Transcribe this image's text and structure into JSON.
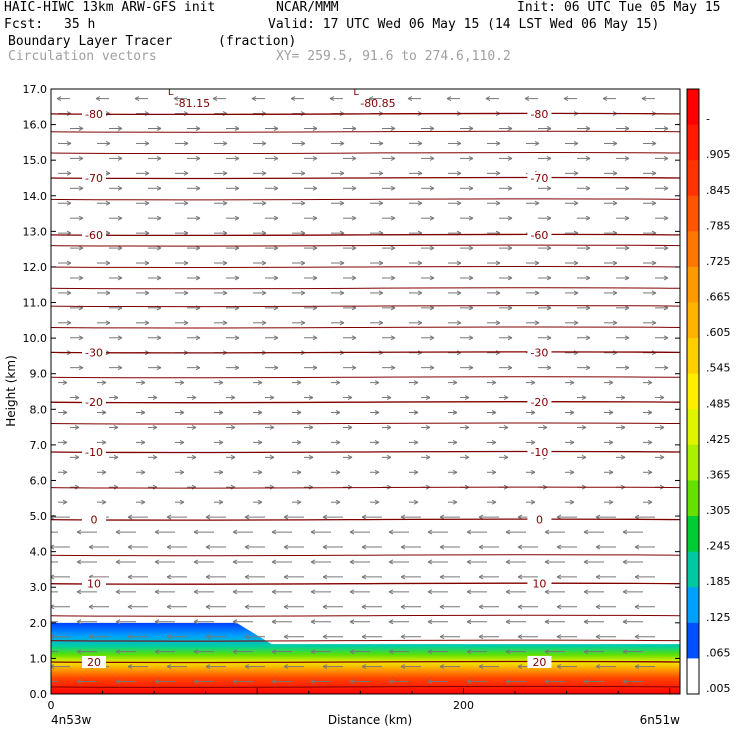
{
  "header": {
    "model": "HAIC-HIWC 13km ARW-GFS init",
    "org": "NCAR/MMM",
    "init": "Init: 06 UTC Tue 05 May 15",
    "fcst_label": "Fcst:",
    "fcst_value": "35 h",
    "valid": "Valid: 17 UTC Wed 06 May 15 (14 LST Wed 06 May 15)",
    "field1_name": "Boundary Layer Tracer",
    "field1_units": "(fraction)",
    "field2_name": "Circulation vectors",
    "cross_section": "XY= 259.5, 91.6 to 274.6,110.2"
  },
  "chart_data": {
    "type": "heatmap",
    "xlabel": "Distance (km)",
    "ylabel": "Height (km)",
    "xlim": [
      0,
      305
    ],
    "ylim": [
      0,
      17
    ],
    "x_ticks": [
      0,
      200
    ],
    "x_tick_labels": [
      "0",
      "200"
    ],
    "x_end_labels": [
      "4n53w",
      "6n51w"
    ],
    "y_ticks": [
      0,
      1,
      2,
      3,
      4,
      5,
      6,
      7,
      8,
      9,
      10,
      11,
      12,
      13,
      14,
      15,
      16,
      17
    ],
    "y_tick_labels": [
      "0.0",
      "1.0",
      "2.0",
      "3.0",
      "4.0",
      "5.0",
      "6.0",
      "7.0",
      "8.0",
      "9.0",
      "10.0",
      "11.0",
      "12.0",
      "13.0",
      "14.0",
      "15.0",
      "16.0",
      "17.0"
    ],
    "colorbar": {
      "labels": [
        "-",
        ".905",
        ".845",
        ".785",
        ".725",
        ".665",
        ".605",
        ".545",
        ".485",
        ".425",
        ".365",
        ".305",
        ".245",
        ".185",
        ".125",
        ".065",
        ".005"
      ],
      "colors": [
        "#ff0000",
        "#ff1a00",
        "#ff3300",
        "#ff5500",
        "#ff7700",
        "#ff9900",
        "#ffb300",
        "#ffd000",
        "#ffee00",
        "#dff500",
        "#aaf000",
        "#66e000",
        "#00cc33",
        "#00c8a0",
        "#00a0ff",
        "#0050ff",
        "#ffffff"
      ]
    },
    "tracer_top_km": [
      [
        0,
        2.0
      ],
      [
        90,
        2.0
      ],
      [
        107,
        1.4
      ],
      [
        305,
        1.4
      ]
    ],
    "isotherms": [
      {
        "label": "-80",
        "km": 16.3
      },
      {
        "label": "-70",
        "km": 14.5
      },
      {
        "label": "-60",
        "km": 12.9
      },
      {
        "label": "-30",
        "km": 9.6
      },
      {
        "label": "-20",
        "km": 8.2
      },
      {
        "label": "-10",
        "km": 6.8
      },
      {
        "label": "0",
        "km": 4.9
      },
      {
        "label": "10",
        "km": 3.1
      },
      {
        "label": "20",
        "km": 0.9
      }
    ],
    "minima": [
      {
        "letter": "L",
        "value": "-81.15",
        "x_km": 58,
        "y_km": 16.6
      },
      {
        "letter": "L",
        "value": "-80.85",
        "x_km": 148,
        "y_km": 16.6
      }
    ]
  }
}
